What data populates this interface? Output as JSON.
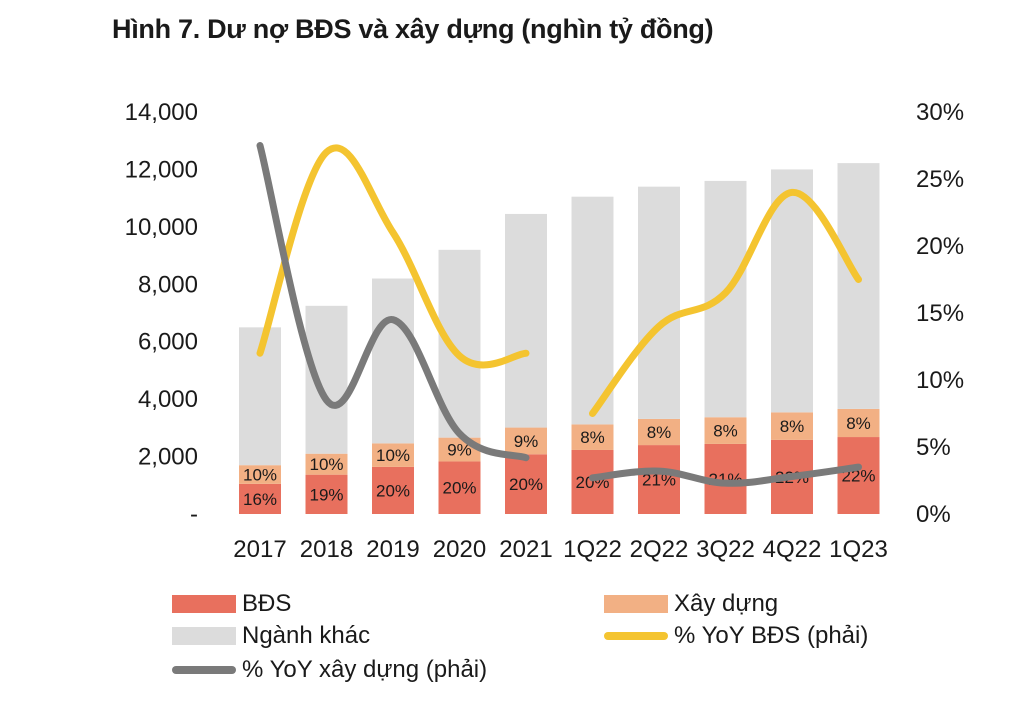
{
  "title": "Hình 7. Dư nợ BĐS và xây dựng (nghìn tỷ đồng)",
  "colors": {
    "bds": "#e8705e",
    "xay_dung": "#f2b084",
    "nganh_khac": "#dcdcdc",
    "yoy_bds": "#f4c430",
    "yoy_xd": "#7a7a7a"
  },
  "chart_data": {
    "type": "bar",
    "stacked": true,
    "categories": [
      "2017",
      "2018",
      "2019",
      "2020",
      "2021",
      "1Q22",
      "2Q22",
      "3Q22",
      "4Q22",
      "1Q23"
    ],
    "series": [
      {
        "name": "BĐS",
        "values": [
          1050,
          1370,
          1640,
          1830,
          2080,
          2230,
          2400,
          2440,
          2580,
          2680
        ],
        "labels": [
          "16%",
          "19%",
          "20%",
          "20%",
          "20%",
          "20%",
          "21%",
          "21%",
          "22%",
          "22%"
        ]
      },
      {
        "name": "Xây dựng",
        "values": [
          650,
          730,
          820,
          830,
          930,
          890,
          910,
          930,
          960,
          980
        ],
        "labels": [
          "10%",
          "10%",
          "10%",
          "9%",
          "9%",
          "8%",
          "8%",
          "8%",
          "8%",
          "8%"
        ]
      },
      {
        "name": "Ngành khác",
        "values": [
          4800,
          5150,
          5740,
          6540,
          7440,
          7930,
          8090,
          8230,
          8460,
          8560
        ]
      }
    ],
    "line_series": [
      {
        "name": "% YoY BĐS (phải)",
        "axis": "right",
        "segments": [
          {
            "categories": [
              "2017",
              "2018",
              "2019",
              "2020",
              "2021"
            ],
            "values": [
              12.0,
              27.0,
              21.0,
              11.8,
              12.0
            ]
          },
          {
            "categories": [
              "1Q22",
              "2Q22",
              "3Q22",
              "4Q22",
              "1Q23"
            ],
            "values": [
              7.5,
              14.0,
              16.5,
              24.0,
              17.5
            ]
          }
        ]
      },
      {
        "name": "% YoY xây dựng (phải)",
        "axis": "right",
        "segments": [
          {
            "categories": [
              "2017",
              "2018",
              "2019",
              "2020",
              "2021"
            ],
            "values": [
              27.5,
              8.5,
              14.5,
              6.0,
              4.2
            ]
          },
          {
            "categories": [
              "1Q22",
              "2Q22",
              "3Q22",
              "4Q22",
              "1Q23"
            ],
            "values": [
              2.7,
              3.2,
              2.3,
              2.8,
              3.5
            ]
          }
        ]
      }
    ],
    "y_left": {
      "min": 0,
      "max": 14000,
      "ticks": [
        {
          "value": 14000,
          "label": "14,000"
        },
        {
          "value": 12000,
          "label": "12,000"
        },
        {
          "value": 10000,
          "label": "10,000"
        },
        {
          "value": 8000,
          "label": "8,000"
        },
        {
          "value": 6000,
          "label": "6,000"
        },
        {
          "value": 4000,
          "label": "4,000"
        },
        {
          "value": 2000,
          "label": "2,000"
        },
        {
          "value": 0,
          "label": "-"
        }
      ]
    },
    "y_right": {
      "min": 0,
      "max": 30,
      "ticks": [
        {
          "value": 30,
          "label": "30%"
        },
        {
          "value": 25,
          "label": "25%"
        },
        {
          "value": 20,
          "label": "20%"
        },
        {
          "value": 15,
          "label": "15%"
        },
        {
          "value": 10,
          "label": "10%"
        },
        {
          "value": 5,
          "label": "5%"
        },
        {
          "value": 0,
          "label": "0%"
        }
      ]
    },
    "grid": false,
    "legend": [
      "BĐS",
      "Xây dựng",
      "Ngành khác",
      "% YoY BĐS (phải)",
      "% YoY xây dựng (phải)"
    ]
  }
}
